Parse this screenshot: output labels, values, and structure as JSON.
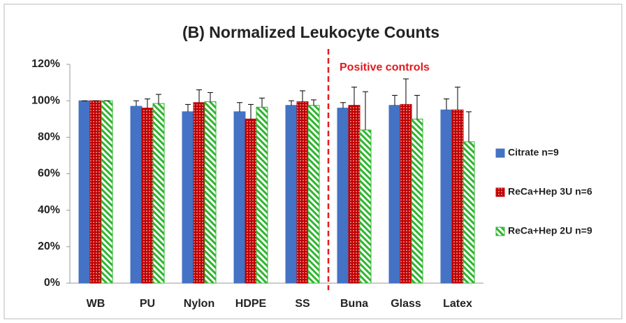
{
  "chart_data": {
    "type": "bar",
    "title": "(B) Normalized Leukocyte Counts",
    "annotation": "Positive controls",
    "annotation_color": "#e31a1c",
    "categories": [
      "WB",
      "PU",
      "Nylon",
      "HDPE",
      "SS",
      "Buna",
      "Glass",
      "Latex"
    ],
    "series": [
      {
        "name": "Citrate n=9",
        "color": "#4472c4",
        "pattern": "solid",
        "values": [
          100,
          97,
          94,
          94,
          97.5,
          96,
          97.5,
          95
        ],
        "errors": [
          0,
          3,
          4,
          5,
          2.5,
          3,
          5.5,
          6
        ]
      },
      {
        "name": "ReCa+Hep 3U n=6",
        "color": "#c00000",
        "pattern": "dots",
        "values": [
          100,
          96,
          99,
          90,
          99.5,
          97.5,
          98,
          95
        ],
        "errors": [
          0,
          5,
          7,
          8,
          6,
          10,
          14,
          12.5
        ]
      },
      {
        "name": "ReCa+Hep 2U n=9",
        "color": "#2fb52f",
        "pattern": "stripes",
        "values": [
          100,
          98.5,
          99.5,
          96.5,
          97.5,
          84,
          90,
          77.5
        ],
        "errors": [
          0,
          5,
          5,
          5,
          3,
          21,
          13,
          16.5
        ]
      }
    ],
    "ylim": [
      0,
      120
    ],
    "yticks": [
      {
        "value": 0,
        "label": "0%"
      },
      {
        "value": 20,
        "label": "20%"
      },
      {
        "value": 40,
        "label": "40%"
      },
      {
        "value": 60,
        "label": "60%"
      },
      {
        "value": 80,
        "label": "80%"
      },
      {
        "value": 100,
        "label": "100%"
      },
      {
        "value": 120,
        "label": "120%"
      }
    ],
    "grid": false,
    "legend": "right"
  }
}
